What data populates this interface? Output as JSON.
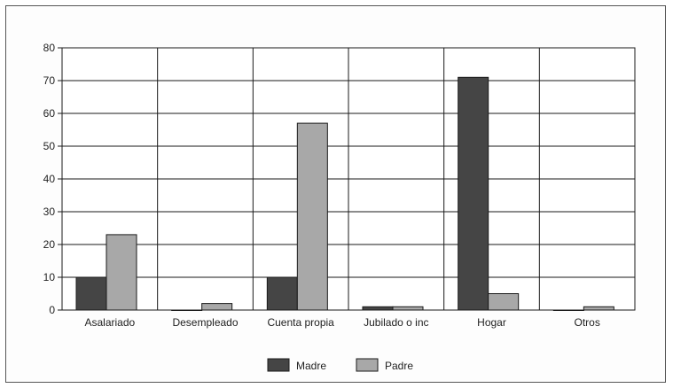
{
  "chart_data": {
    "type": "bar",
    "categories": [
      "Asalariado",
      "Desempleado",
      "Cuenta propia",
      "Jubilado o inc",
      "Hogar",
      "Otros"
    ],
    "series": [
      {
        "name": "Madre",
        "values": [
          10,
          0,
          10,
          1,
          71,
          0
        ]
      },
      {
        "name": "Padre",
        "values": [
          23,
          2,
          57,
          1,
          5,
          1
        ]
      }
    ],
    "yticks": [
      "0",
      "10",
      "20",
      "30",
      "40",
      "50",
      "60",
      "70",
      "80"
    ],
    "ylim": [
      0,
      80
    ],
    "grid": true,
    "legend_placement": "bottom-center",
    "colors": {
      "Madre": "#454545",
      "Padre": "#a8a8a8"
    }
  }
}
